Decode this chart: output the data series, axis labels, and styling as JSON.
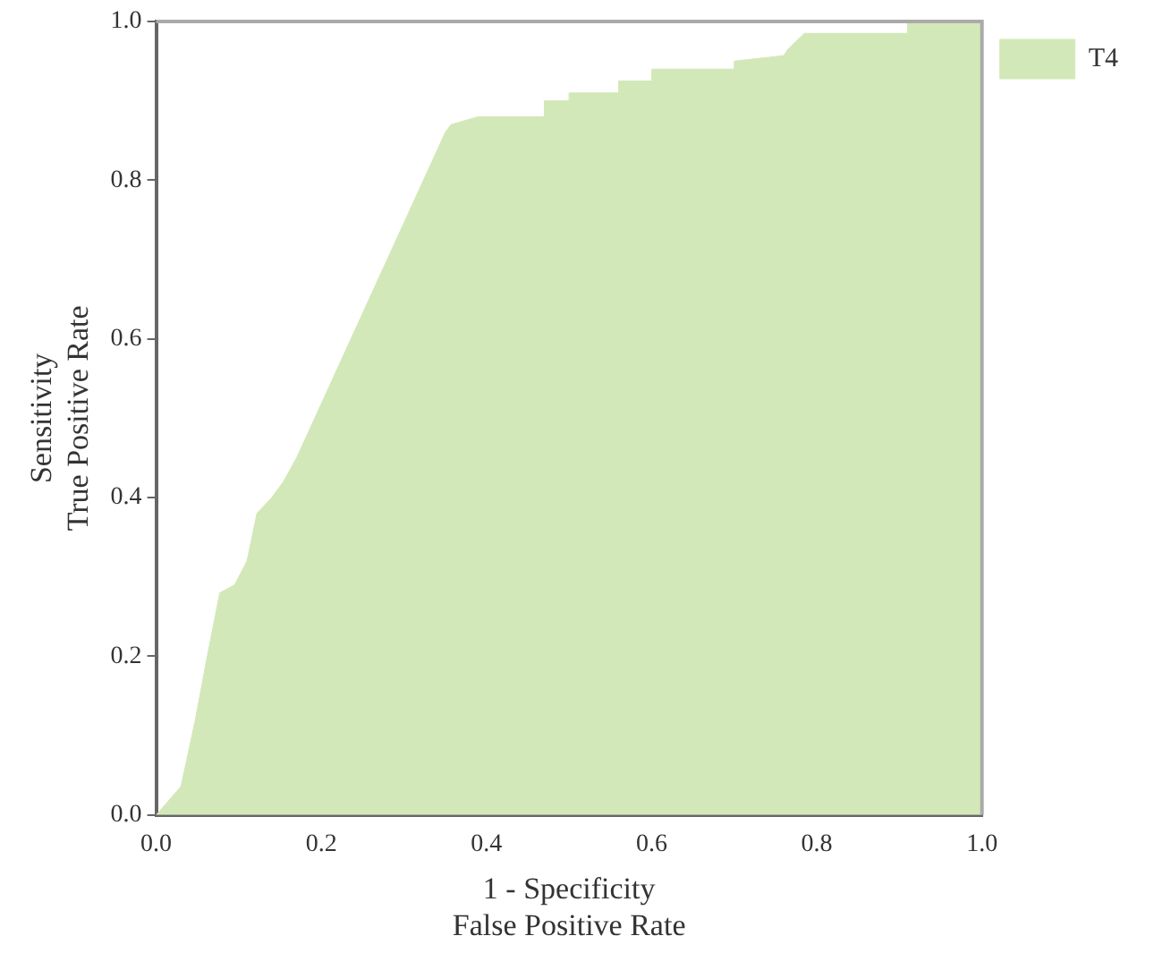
{
  "chart_data": {
    "type": "area",
    "xlabel": "1 - Specificity\nFalse Positive Rate",
    "ylabel": "Sensitivity\nTrue Positive Rate",
    "x": [
      0,
      0.03,
      0.03,
      0.047,
      0.047,
      0.06,
      0.06,
      0.077,
      0.077,
      0.095,
      0.095,
      0.11,
      0.11,
      0.122,
      0.122,
      0.14,
      0.14,
      0.154,
      0.154,
      0.17,
      0.17,
      0.35,
      0.357,
      0.39,
      0.47,
      0.47,
      0.5,
      0.5,
      0.56,
      0.56,
      0.6,
      0.6,
      0.7,
      0.7,
      0.76,
      0.765,
      0.785,
      0.91,
      0.91,
      1
    ],
    "series": [
      {
        "name": "T4",
        "color": "#d3e8b8",
        "values": [
          0,
          0.036,
          0.036,
          0.118,
          0.118,
          0.19,
          0.19,
          0.28,
          0.28,
          0.29,
          0.29,
          0.32,
          0.32,
          0.38,
          0.38,
          0.4,
          0.4,
          0.42,
          0.42,
          0.45,
          0.45,
          0.86,
          0.87,
          0.88,
          0.88,
          0.9,
          0.9,
          0.91,
          0.91,
          0.925,
          0.925,
          0.94,
          0.94,
          0.95,
          0.957,
          0.965,
          0.985,
          0.985,
          1,
          1
        ]
      }
    ],
    "xlim": [
      0,
      1
    ],
    "ylim": [
      0,
      1
    ],
    "xticks": [
      {
        "value": 0,
        "label": "0.0"
      },
      {
        "value": 0.2,
        "label": "0.2"
      },
      {
        "value": 0.4,
        "label": "0.4"
      },
      {
        "value": 0.6,
        "label": "0.6"
      },
      {
        "value": 0.8,
        "label": "0.8"
      },
      {
        "value": 1,
        "label": "1.0"
      }
    ],
    "yticks": [
      {
        "value": 0,
        "label": "0.0"
      },
      {
        "value": 0.2,
        "label": "0.2"
      },
      {
        "value": 0.4,
        "label": "0.4"
      },
      {
        "value": 0.6,
        "label": "0.6"
      },
      {
        "value": 0.8,
        "label": "0.8"
      },
      {
        "value": 1,
        "label": "1.0"
      }
    ],
    "legend": "top right",
    "grid": false,
    "marker": "none"
  }
}
